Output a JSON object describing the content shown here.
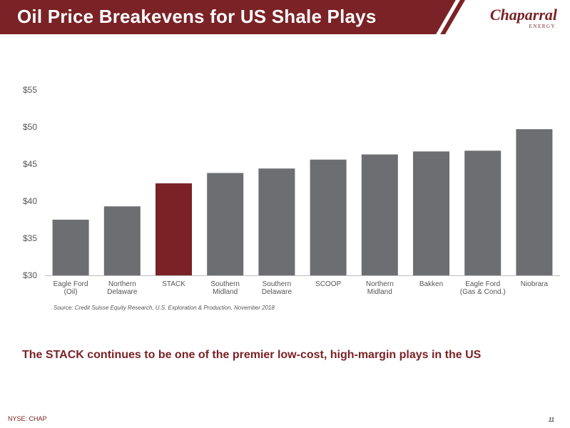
{
  "header": {
    "title": "Oil Price Breakevens for US Shale Plays"
  },
  "logo": {
    "name": "Chaparral",
    "sub": "ENERGY",
    "colors": {
      "brand": "#7a2226"
    }
  },
  "chart_data": {
    "type": "bar",
    "categories": [
      [
        "Eagle Ford",
        "(Oil)"
      ],
      [
        "Northern",
        "Delaware"
      ],
      [
        "STACK"
      ],
      [
        "Southern",
        "Midland"
      ],
      [
        "Southern",
        "Delaware"
      ],
      [
        "SCOOP"
      ],
      [
        "Northern",
        "Midland"
      ],
      [
        "Bakken"
      ],
      [
        "Eagle Ford",
        "(Gas & Cond.)"
      ],
      [
        "Niobrara"
      ]
    ],
    "values": [
      37.5,
      39.3,
      42.4,
      43.8,
      44.4,
      45.6,
      46.3,
      46.7,
      46.8,
      49.7
    ],
    "ylim": [
      30,
      55
    ],
    "yticks": [
      30,
      35,
      40,
      45,
      50,
      55
    ],
    "ytick_labels": [
      "$30",
      "$35",
      "$40",
      "$45",
      "$50",
      "$55"
    ],
    "highlight_index": 2,
    "colors": {
      "bar": "#6d6e71",
      "highlight": "#7a2226"
    },
    "grid": false
  },
  "source": "Source: Credit Suisse Equity Research, U.S. Exploration & Production, November 2018",
  "tagline": "The STACK continues to be one of the premier low-cost, high-margin plays in the US",
  "footer": {
    "ticker": "NYSE: CHAP",
    "page_number": "11"
  }
}
